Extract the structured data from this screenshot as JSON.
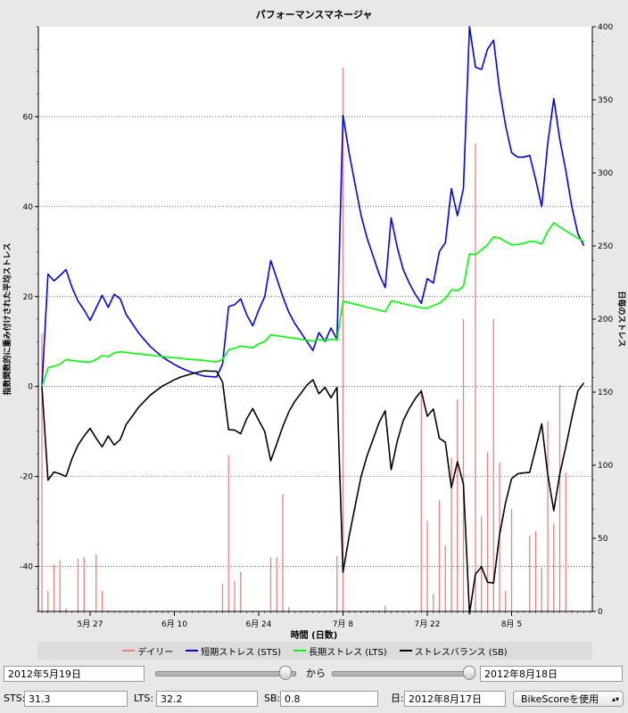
{
  "chart_data": {
    "type": "line",
    "title": "パフォーマンスマネージャ",
    "xlabel": "時間 (日数)",
    "ylabel": "指数関数的に重み付けされた平均ストレス",
    "ylabel_right": "日毎のストレス",
    "x_ticks": [
      "5月 27",
      "6月 10",
      "6月 24",
      "7月 8",
      "7月 22",
      "8月 5"
    ],
    "ylim": [
      -50,
      80
    ],
    "y_ticks": [
      -40,
      -20,
      0,
      20,
      40,
      60
    ],
    "ylim_right": [
      0,
      400
    ],
    "y_ticks_right": [
      0,
      50,
      100,
      150,
      200,
      250,
      300,
      350,
      400
    ],
    "grid": true,
    "legend_position": "bottom",
    "series": [
      {
        "name": "デイリー",
        "type": "bar",
        "axis": "right",
        "color": "#f08080",
        "x": [
          "2012-05-19",
          "2012-05-20",
          "2012-05-21",
          "2012-05-22",
          "2012-05-23",
          "2012-05-25",
          "2012-05-26",
          "2012-05-28",
          "2012-05-29",
          "2012-06-18",
          "2012-06-19",
          "2012-06-20",
          "2012-06-21",
          "2012-06-26",
          "2012-06-27",
          "2012-06-28",
          "2012-06-29",
          "2012-07-07",
          "2012-07-08",
          "2012-07-15",
          "2012-07-21",
          "2012-07-22",
          "2012-07-23",
          "2012-07-24",
          "2012-07-25",
          "2012-07-26",
          "2012-07-27",
          "2012-07-28",
          "2012-07-29",
          "2012-07-30",
          "2012-07-31",
          "2012-08-01",
          "2012-08-02",
          "2012-08-03",
          "2012-08-04",
          "2012-08-05",
          "2012-08-08",
          "2012-08-09",
          "2012-08-10",
          "2012-08-11",
          "2012-08-12",
          "2012-08-13",
          "2012-08-14",
          "2012-08-15"
        ],
        "values": [
          190,
          14,
          32,
          35,
          2,
          36,
          37,
          39,
          14,
          19,
          107,
          21,
          27,
          37,
          37,
          80,
          3,
          38,
          372,
          4,
          152,
          62,
          12,
          76,
          45,
          105,
          145,
          200,
          2,
          320,
          65,
          109,
          200,
          102,
          14,
          70,
          52,
          55,
          30,
          130,
          60,
          155,
          95,
          1
        ],
        "colors_note": "thin vertical bars"
      },
      {
        "name": "短期ストレス (STS)",
        "axis": "left",
        "color": "#0000ff",
        "x": [
          "2012-05-19",
          "2012-05-20",
          "2012-05-21",
          "2012-05-22",
          "2012-05-23",
          "2012-05-24",
          "2012-05-25",
          "2012-05-26",
          "2012-05-27",
          "2012-05-28",
          "2012-05-29",
          "2012-05-30",
          "2012-05-31",
          "2012-06-01",
          "2012-06-02",
          "2012-06-03",
          "2012-06-04",
          "2012-06-05",
          "2012-06-06",
          "2012-06-07",
          "2012-06-08",
          "2012-06-09",
          "2012-06-10",
          "2012-06-11",
          "2012-06-12",
          "2012-06-13",
          "2012-06-14",
          "2012-06-15",
          "2012-06-16",
          "2012-06-17",
          "2012-06-18",
          "2012-06-19",
          "2012-06-20",
          "2012-06-21",
          "2012-06-22",
          "2012-06-23",
          "2012-06-24",
          "2012-06-25",
          "2012-06-26",
          "2012-06-27",
          "2012-06-28",
          "2012-06-29",
          "2012-06-30",
          "2012-07-01",
          "2012-07-02",
          "2012-07-03",
          "2012-07-04",
          "2012-07-05",
          "2012-07-06",
          "2012-07-07",
          "2012-07-08",
          "2012-07-09",
          "2012-07-10",
          "2012-07-11",
          "2012-07-12",
          "2012-07-13",
          "2012-07-14",
          "2012-07-15",
          "2012-07-16",
          "2012-07-17",
          "2012-07-18",
          "2012-07-19",
          "2012-07-20",
          "2012-07-21",
          "2012-07-22",
          "2012-07-23",
          "2012-07-24",
          "2012-07-25",
          "2012-07-26",
          "2012-07-27",
          "2012-07-28",
          "2012-07-29",
          "2012-07-30",
          "2012-07-31",
          "2012-08-01",
          "2012-08-02",
          "2012-08-03",
          "2012-08-04",
          "2012-08-05",
          "2012-08-06",
          "2012-08-07",
          "2012-08-08",
          "2012-08-09",
          "2012-08-10",
          "2012-08-11",
          "2012-08-12",
          "2012-08-13",
          "2012-08-14",
          "2012-08-15",
          "2012-08-16",
          "2012-08-17"
        ],
        "values": [
          0,
          25,
          23.5,
          24.7,
          26,
          22,
          19,
          17,
          14.7,
          17.5,
          20.3,
          17.6,
          20.5,
          19.5,
          16,
          14,
          12,
          10.4,
          8.9,
          7.7,
          6.6,
          5.7,
          4.9,
          4.2,
          3.6,
          3.1,
          2.7,
          2.3,
          2.2,
          2.1,
          5,
          17.8,
          18.2,
          19.5,
          16,
          13.5,
          17,
          20,
          28,
          24,
          20,
          16.5,
          14,
          12,
          10,
          8,
          12,
          10,
          13,
          10.5,
          60.3,
          52,
          45,
          38,
          33,
          29,
          25,
          22,
          37.5,
          31,
          26,
          23,
          20.5,
          18.5,
          24,
          23,
          30,
          32,
          44,
          38,
          44,
          80,
          71,
          70.5,
          75,
          77,
          66,
          58,
          52,
          51,
          51,
          51.4,
          46,
          40,
          54,
          64,
          55,
          48,
          40,
          34,
          31.3
        ]
      },
      {
        "name": "長期ストレス (LTS)",
        "axis": "left",
        "color": "#00ff00",
        "x": [
          "2012-05-19",
          "2012-05-20",
          "2012-05-21",
          "2012-05-22",
          "2012-05-23",
          "2012-05-24",
          "2012-05-25",
          "2012-05-26",
          "2012-05-27",
          "2012-05-28",
          "2012-05-29",
          "2012-05-30",
          "2012-05-31",
          "2012-06-01",
          "2012-06-02",
          "2012-06-03",
          "2012-06-04",
          "2012-06-05",
          "2012-06-06",
          "2012-06-07",
          "2012-06-08",
          "2012-06-09",
          "2012-06-10",
          "2012-06-11",
          "2012-06-12",
          "2012-06-13",
          "2012-06-14",
          "2012-06-15",
          "2012-06-16",
          "2012-06-17",
          "2012-06-18",
          "2012-06-19",
          "2012-06-20",
          "2012-06-21",
          "2012-06-22",
          "2012-06-23",
          "2012-06-24",
          "2012-06-25",
          "2012-06-26",
          "2012-06-27",
          "2012-06-28",
          "2012-06-29",
          "2012-06-30",
          "2012-07-01",
          "2012-07-02",
          "2012-07-03",
          "2012-07-04",
          "2012-07-05",
          "2012-07-06",
          "2012-07-07",
          "2012-07-08",
          "2012-07-09",
          "2012-07-10",
          "2012-07-11",
          "2012-07-12",
          "2012-07-13",
          "2012-07-14",
          "2012-07-15",
          "2012-07-16",
          "2012-07-17",
          "2012-07-18",
          "2012-07-19",
          "2012-07-20",
          "2012-07-21",
          "2012-07-22",
          "2012-07-23",
          "2012-07-24",
          "2012-07-25",
          "2012-07-26",
          "2012-07-27",
          "2012-07-28",
          "2012-07-29",
          "2012-07-30",
          "2012-07-31",
          "2012-08-01",
          "2012-08-02",
          "2012-08-03",
          "2012-08-04",
          "2012-08-05",
          "2012-08-06",
          "2012-08-07",
          "2012-08-08",
          "2012-08-09",
          "2012-08-10",
          "2012-08-11",
          "2012-08-12",
          "2012-08-13",
          "2012-08-14",
          "2012-08-15",
          "2012-08-16",
          "2012-08-17"
        ],
        "values": [
          0,
          4.2,
          4.5,
          5,
          6,
          5.8,
          5.6,
          5.5,
          5.4,
          6,
          6.9,
          6.6,
          7.5,
          7.7,
          7.6,
          7.4,
          7.3,
          7.1,
          7,
          6.8,
          6.7,
          6.5,
          6.4,
          6.3,
          6.1,
          6,
          5.9,
          5.8,
          5.6,
          5.5,
          6,
          8.2,
          8.5,
          9,
          8.8,
          8.6,
          9.5,
          10,
          11.5,
          11.3,
          11.1,
          10.9,
          10.7,
          10.5,
          10.3,
          10.1,
          10.4,
          10.2,
          10.5,
          10.3,
          19,
          18.6,
          18.3,
          18,
          17.6,
          17.3,
          17,
          16.6,
          19,
          18.8,
          18.4,
          18.1,
          17.8,
          17.5,
          17.4,
          18,
          18.5,
          19.6,
          21.5,
          21.3,
          22.3,
          29.5,
          29.3,
          30.4,
          31.5,
          33.3,
          33,
          32.2,
          31.5,
          31.6,
          31.8,
          32.3,
          32.2,
          31.7,
          34.5,
          36.4,
          35.5,
          34.6,
          33.8,
          33,
          32.2
        ]
      },
      {
        "name": "ストレスバランス (SB)",
        "axis": "left",
        "color": "#000000",
        "x": [
          "2012-05-19",
          "2012-05-20",
          "2012-05-21",
          "2012-05-22",
          "2012-05-23",
          "2012-05-24",
          "2012-05-25",
          "2012-05-26",
          "2012-05-27",
          "2012-05-28",
          "2012-05-29",
          "2012-05-30",
          "2012-05-31",
          "2012-06-01",
          "2012-06-02",
          "2012-06-03",
          "2012-06-04",
          "2012-06-05",
          "2012-06-06",
          "2012-06-07",
          "2012-06-08",
          "2012-06-09",
          "2012-06-10",
          "2012-06-11",
          "2012-06-12",
          "2012-06-13",
          "2012-06-14",
          "2012-06-15",
          "2012-06-16",
          "2012-06-17",
          "2012-06-18",
          "2012-06-19",
          "2012-06-20",
          "2012-06-21",
          "2012-06-22",
          "2012-06-23",
          "2012-06-24",
          "2012-06-25",
          "2012-06-26",
          "2012-06-27",
          "2012-06-28",
          "2012-06-29",
          "2012-06-30",
          "2012-07-01",
          "2012-07-02",
          "2012-07-03",
          "2012-07-04",
          "2012-07-05",
          "2012-07-06",
          "2012-07-07",
          "2012-07-08",
          "2012-07-09",
          "2012-07-10",
          "2012-07-11",
          "2012-07-12",
          "2012-07-13",
          "2012-07-14",
          "2012-07-15",
          "2012-07-16",
          "2012-07-17",
          "2012-07-18",
          "2012-07-19",
          "2012-07-20",
          "2012-07-21",
          "2012-07-22",
          "2012-07-23",
          "2012-07-24",
          "2012-07-25",
          "2012-07-26",
          "2012-07-27",
          "2012-07-28",
          "2012-07-29",
          "2012-07-30",
          "2012-07-31",
          "2012-08-01",
          "2012-08-02",
          "2012-08-03",
          "2012-08-04",
          "2012-08-05",
          "2012-08-06",
          "2012-08-07",
          "2012-08-08",
          "2012-08-09",
          "2012-08-10",
          "2012-08-11",
          "2012-08-12",
          "2012-08-13",
          "2012-08-14",
          "2012-08-15",
          "2012-08-16",
          "2012-08-17"
        ],
        "values": [
          0,
          -20.8,
          -19,
          -19.4,
          -20,
          -16,
          -13,
          -11,
          -9.3,
          -11.5,
          -13.4,
          -11,
          -13,
          -11.8,
          -8.4,
          -6.6,
          -4.7,
          -3.3,
          -1.9,
          -0.9,
          0.1,
          0.8,
          1.5,
          2.1,
          2.5,
          2.9,
          3.2,
          3.5,
          3.4,
          3.4,
          1,
          -9.6,
          -9.7,
          -10.5,
          -7.2,
          -4.9,
          -7.5,
          -10,
          -16.5,
          -12.7,
          -8.9,
          -5.6,
          -3.3,
          -1.5,
          0.3,
          1.5,
          -1.6,
          -0.2,
          -2.5,
          -0.2,
          -41.3,
          -33.4,
          -26.7,
          -20,
          -15.4,
          -11.7,
          -8,
          -5.4,
          -18.5,
          -12.2,
          -7.6,
          -4.9,
          -2.7,
          -1,
          -6.6,
          -5,
          -11.5,
          -12.4,
          -22.5,
          -16.7,
          -21.7,
          -50.5,
          -41.7,
          -40.1,
          -43.5,
          -43.7,
          -33,
          -25.8,
          -20.5,
          -19.4,
          -19.2,
          -19.1,
          -13.8,
          -8.3,
          -19.5,
          -27.6,
          -19.5,
          -13.4,
          -7,
          -1,
          0.8
        ]
      }
    ]
  },
  "legend": [
    {
      "label": "デイリー",
      "color": "#f08080"
    },
    {
      "label": "短期ストレス (STS)",
      "color": "#0000ff"
    },
    {
      "label": "長期ストレス (LTS)",
      "color": "#00ff00"
    },
    {
      "label": "ストレスバランス (SB)",
      "color": "#000000"
    }
  ],
  "controls": {
    "start_date": "2012年5月19日",
    "from_label": "から",
    "end_date": "2012年8月18日",
    "start_slider_fraction": 0.93,
    "end_slider_fraction": 0.98,
    "sts_label": "STS:",
    "sts_value": "31.3",
    "lts_label": "LTS:",
    "lts_value": "32.2",
    "sb_label": "SB:",
    "sb_value": "0.8",
    "day_label": "日:",
    "day_value": "2012年8月17日",
    "metric_select": "BikeScoreを使用"
  }
}
